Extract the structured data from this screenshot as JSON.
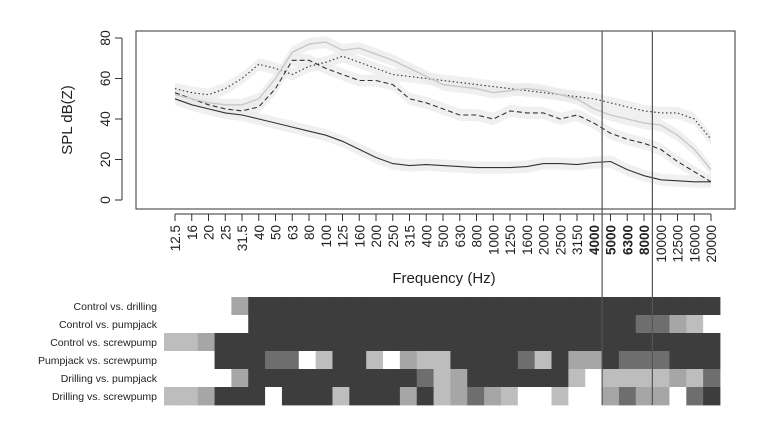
{
  "chart_data": {
    "type": "line",
    "xlabel": "Frequency (Hz)",
    "ylabel": "SPL dB(Z)",
    "ylim": [
      0,
      80
    ],
    "yticks": [
      0,
      20,
      40,
      60,
      80
    ],
    "grid": false,
    "categories": [
      "12.5",
      "16",
      "20",
      "25",
      "31.5",
      "40",
      "50",
      "63",
      "80",
      "100",
      "125",
      "160",
      "200",
      "250",
      "315",
      "400",
      "500",
      "630",
      "800",
      "1000",
      "1250",
      "1600",
      "2000",
      "2500",
      "3150",
      "4000",
      "5000",
      "6300",
      "8000",
      "10000",
      "12500",
      "16000",
      "20000"
    ],
    "bold_categories": [
      "4000",
      "5000",
      "6300",
      "8000"
    ],
    "vertical_markers": [
      "4000",
      "8000"
    ],
    "series": [
      {
        "style": "solid-dark",
        "color": "#333333",
        "values": [
          50,
          47,
          45,
          43,
          42,
          40,
          38,
          36,
          34,
          32,
          29,
          25,
          21,
          18,
          17,
          17.5,
          17,
          16.5,
          16,
          16,
          16,
          16.5,
          18,
          18,
          17.5,
          18.5,
          19,
          15,
          12,
          10,
          9.5,
          9,
          9
        ]
      },
      {
        "style": "dashed",
        "color": "#333333",
        "values": [
          53,
          50,
          47,
          45,
          44,
          46,
          55,
          69,
          69,
          65,
          62,
          59,
          59,
          57,
          50,
          48,
          45,
          42,
          42,
          40,
          44,
          43,
          43,
          40,
          42,
          38,
          33,
          30,
          28,
          25,
          19,
          14,
          9
        ]
      },
      {
        "style": "dotted",
        "color": "#333333",
        "values": [
          55,
          53,
          52,
          55,
          60,
          67,
          65,
          62,
          66,
          68,
          71,
          68,
          65,
          62,
          61,
          60,
          59,
          58,
          57,
          56,
          55,
          54,
          53,
          52,
          51,
          50,
          48,
          46,
          44,
          43,
          43,
          40,
          30
        ]
      },
      {
        "style": "solid-light",
        "color": "#c8c8c8",
        "values": [
          52,
          50,
          48,
          47,
          47,
          50,
          60,
          73,
          77,
          78,
          74,
          75,
          72,
          69,
          65,
          61,
          57,
          56,
          55,
          53,
          54,
          55,
          54,
          52,
          50,
          45,
          42,
          40,
          38,
          37,
          32,
          25,
          15
        ]
      }
    ],
    "comparisons": {
      "rows": [
        "Control vs. drilling",
        "Control vs. pumpjack",
        "Control vs. screwpump",
        "Pumpjack vs. screwpump",
        "Drilling vs. pumpjack",
        "Drilling vs. screwpump"
      ],
      "columns": [
        "12.5",
        "16",
        "20",
        "25",
        "31.5",
        "40",
        "50",
        "63",
        "80",
        "100",
        "125",
        "160",
        "200",
        "250",
        "315",
        "400",
        "500",
        "630",
        "800",
        "1000",
        "1250",
        "1600",
        "2000",
        "2500",
        "3150",
        "4000",
        "5000",
        "6300",
        "8000",
        "10000",
        "12500",
        "16000",
        "20000"
      ],
      "level_colors": [
        "#ffffff",
        "#bdbdbd",
        "#a6a6a6",
        "#6e6e6e",
        "#3d3d3d"
      ],
      "levels": [
        [
          0,
          0,
          0,
          0,
          2,
          4,
          4,
          4,
          4,
          4,
          4,
          4,
          4,
          4,
          4,
          4,
          4,
          4,
          4,
          4,
          4,
          4,
          4,
          4,
          4,
          4,
          4,
          4,
          4,
          4,
          4,
          4,
          4
        ],
        [
          0,
          0,
          0,
          0,
          0,
          4,
          4,
          4,
          4,
          4,
          4,
          4,
          4,
          4,
          4,
          4,
          4,
          4,
          4,
          4,
          4,
          4,
          4,
          4,
          4,
          4,
          4,
          4,
          3,
          3,
          2,
          1,
          0
        ],
        [
          1,
          1,
          2,
          4,
          4,
          4,
          4,
          4,
          4,
          4,
          4,
          4,
          4,
          4,
          4,
          4,
          4,
          4,
          4,
          4,
          4,
          4,
          4,
          4,
          4,
          4,
          4,
          4,
          4,
          4,
          4,
          4,
          4
        ],
        [
          0,
          0,
          0,
          4,
          4,
          4,
          3,
          3,
          0,
          1,
          4,
          4,
          1,
          0,
          2,
          1,
          1,
          4,
          4,
          4,
          4,
          3,
          1,
          4,
          2,
          2,
          4,
          3,
          3,
          3,
          4,
          4,
          4
        ],
        [
          0,
          0,
          0,
          0,
          2,
          4,
          4,
          4,
          4,
          4,
          4,
          4,
          4,
          4,
          4,
          3,
          1,
          2,
          4,
          4,
          4,
          4,
          4,
          4,
          1,
          0,
          1,
          1,
          1,
          1,
          2,
          1,
          3
        ],
        [
          1,
          1,
          2,
          4,
          4,
          4,
          0,
          4,
          4,
          4,
          1,
          4,
          4,
          4,
          2,
          4,
          1,
          2,
          3,
          2,
          1,
          0,
          0,
          1,
          0,
          0,
          2,
          3,
          2,
          2,
          0,
          3,
          4
        ]
      ]
    }
  }
}
